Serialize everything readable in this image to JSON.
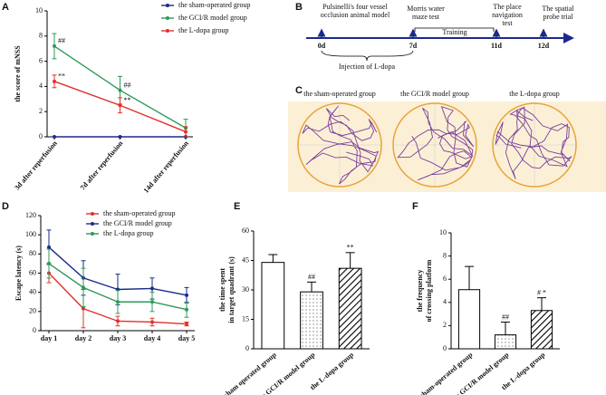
{
  "chart_data": [
    {
      "type": "line",
      "panel": "A",
      "ylabel": "the score of mNSS",
      "categories": [
        "3d after reperfusion",
        "7d after reperfusion",
        "14d after reperfusion"
      ],
      "ylim": [
        0,
        10
      ],
      "yticks": [
        0,
        2,
        4,
        6,
        8,
        10
      ],
      "series": [
        {
          "name": "the sham-operated group",
          "color": "#1b2a8a",
          "values": [
            0,
            0,
            0
          ],
          "errors": [
            0,
            0,
            0
          ],
          "annotations": [
            null,
            null,
            null
          ]
        },
        {
          "name": "the GCI/R model group",
          "color": "#2e9a5a",
          "values": [
            7.2,
            3.7,
            0.7
          ],
          "errors": [
            1.0,
            1.1,
            0.7
          ],
          "annotations": [
            "##",
            "##",
            null
          ]
        },
        {
          "name": "the L-dopa group",
          "color": "#e3302b",
          "values": [
            4.4,
            2.5,
            0.4
          ],
          "errors": [
            0.5,
            0.6,
            0.4
          ],
          "annotations": [
            "**",
            "**",
            null
          ]
        }
      ]
    },
    {
      "type": "line",
      "panel": "D",
      "ylabel": "Escape latency (s)",
      "categories": [
        "day 1",
        "day 2",
        "day 3",
        "day 4",
        "day 5"
      ],
      "ylim": [
        0,
        120
      ],
      "yticks": [
        0,
        20,
        40,
        60,
        80,
        100,
        120
      ],
      "series": [
        {
          "name": "the sham-operated group",
          "color": "#e3302b",
          "values": [
            60,
            23,
            10,
            9,
            7
          ],
          "errors": [
            10,
            20,
            5,
            4,
            2
          ],
          "annotations": [
            null,
            null,
            null,
            null,
            null
          ]
        },
        {
          "name": "the GCI/R model group",
          "color": "#1b2a8a",
          "values": [
            87,
            55,
            43,
            44,
            37
          ],
          "errors": [
            18,
            18,
            16,
            11,
            8
          ],
          "annotations": [
            null,
            null,
            null,
            null,
            null
          ]
        },
        {
          "name": "the L-dopa group",
          "color": "#2e9a5a",
          "values": [
            70,
            45,
            30,
            30,
            22
          ],
          "errors": [
            15,
            20,
            12,
            10,
            8
          ],
          "annotations": [
            null,
            null,
            null,
            null,
            null
          ]
        }
      ]
    },
    {
      "type": "bar",
      "panel": "E",
      "ylabel": [
        "the time spent",
        "in target quadrant (s)"
      ],
      "categories": [
        "the sham operated group",
        "the GCI/R model group",
        "the L-dopa group"
      ],
      "ylim": [
        0,
        60
      ],
      "yticks": [
        0,
        15,
        30,
        45,
        60
      ],
      "values": [
        44,
        29,
        41
      ],
      "errors": [
        4,
        5,
        8
      ],
      "annotations": [
        null,
        "##",
        "**"
      ],
      "patterns": [
        "none",
        "dots",
        "diagonal"
      ]
    },
    {
      "type": "bar",
      "panel": "F",
      "ylabel": [
        "the frequency",
        "of crossing platform"
      ],
      "categories": [
        "the sham-operated group",
        "the GCI/R model group",
        "the L-dopa group"
      ],
      "ylim": [
        0,
        10
      ],
      "yticks": [
        0,
        2,
        4,
        6,
        8,
        10
      ],
      "values": [
        5.1,
        1.2,
        3.3
      ],
      "errors": [
        2.0,
        1.1,
        1.1
      ],
      "annotations": [
        null,
        "##",
        "# *"
      ],
      "patterns": [
        "none",
        "dots",
        "diagonal"
      ]
    }
  ],
  "timeline": {
    "panel": "B",
    "days": [
      "0d",
      "7d",
      "11d",
      "12d"
    ],
    "events": [
      [
        "Pulsinelli's four vessel",
        "occlusion animal model"
      ],
      [
        "Morris water",
        "maze test"
      ],
      [
        "The place",
        "navigation",
        "test"
      ],
      [
        "The spatial",
        "probe trial"
      ]
    ],
    "training": "Training",
    "injection": "Injection of L-dopa"
  },
  "tracks": {
    "panel": "C",
    "groups": [
      "the sham-operated group",
      "the GCI/R model group",
      "the L-dopa group"
    ]
  }
}
